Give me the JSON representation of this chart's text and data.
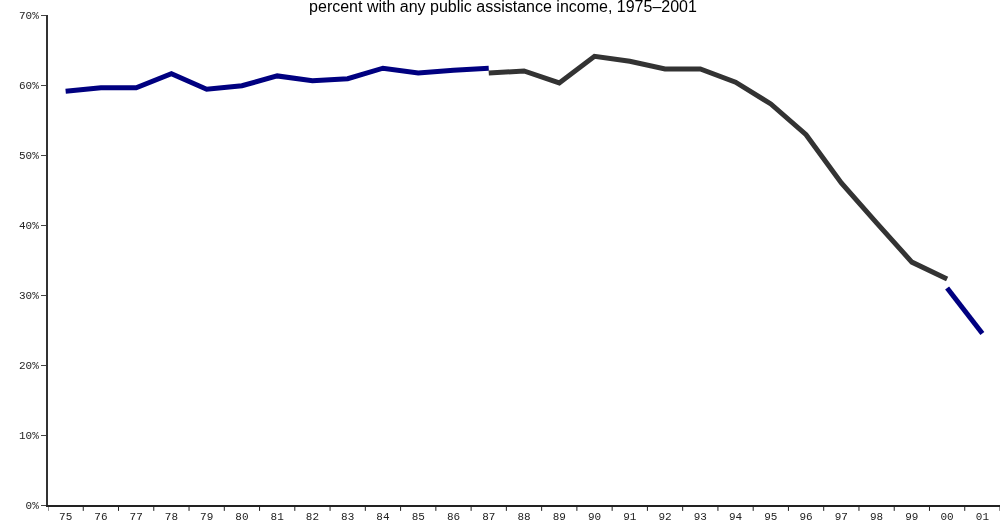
{
  "chart_data": {
    "type": "line",
    "title": "percent with any public assistance income, 1975–2001",
    "categories": [
      "75",
      "76",
      "77",
      "78",
      "79",
      "80",
      "81",
      "82",
      "83",
      "84",
      "85",
      "86",
      "87",
      "88",
      "89",
      "90",
      "91",
      "92",
      "93",
      "94",
      "95",
      "96",
      "97",
      "98",
      "99",
      "00",
      "01"
    ],
    "series": [
      {
        "color": "#000080",
        "values": [
          59.1,
          59.6,
          59.6,
          61.6,
          59.4,
          59.9,
          61.3,
          60.6,
          60.9,
          62.4,
          61.7,
          62.1,
          62.4,
          null,
          null,
          null,
          null,
          null,
          null,
          null,
          null,
          null,
          null,
          null,
          null,
          31.0,
          24.5
        ]
      },
      {
        "color": "#333333",
        "values": [
          null,
          null,
          null,
          null,
          null,
          null,
          null,
          null,
          null,
          null,
          null,
          null,
          61.7,
          62.0,
          60.3,
          64.1,
          63.4,
          62.3,
          62.3,
          60.4,
          57.3,
          52.9,
          46.0,
          40.3,
          34.7,
          32.3,
          null
        ]
      }
    ],
    "ylim": [
      0,
      70
    ],
    "yticks": [
      {
        "value": 0,
        "label": "0%"
      },
      {
        "value": 10,
        "label": "10%"
      },
      {
        "value": 20,
        "label": "20%"
      },
      {
        "value": 30,
        "label": "30%"
      },
      {
        "value": 40,
        "label": "40%"
      },
      {
        "value": 50,
        "label": "50%"
      },
      {
        "value": 60,
        "label": "60%"
      },
      {
        "value": 70,
        "label": "70%"
      }
    ],
    "marker": "none",
    "line_style": "solid"
  }
}
